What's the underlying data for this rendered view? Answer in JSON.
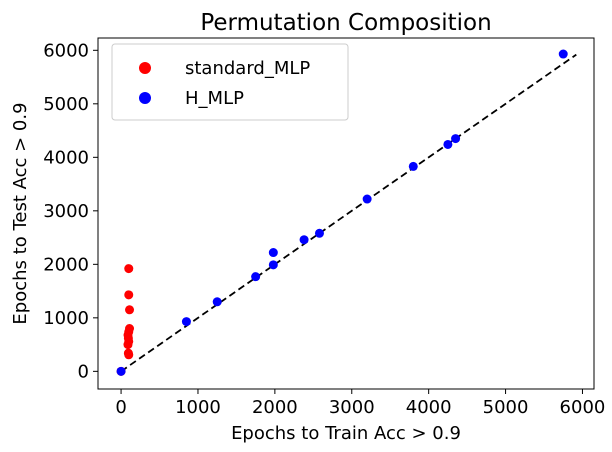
{
  "chart_data": {
    "type": "scatter",
    "title": "Permutation Composition",
    "xlabel": "Epochs to Train Acc > 0.9",
    "ylabel": "Epochs to Test Acc > 0.9",
    "xlim": [
      -300,
      6150
    ],
    "ylim": [
      -330,
      6230
    ],
    "xticks": [
      0,
      1000,
      2000,
      3000,
      4000,
      5000,
      6000
    ],
    "yticks": [
      0,
      1000,
      2000,
      3000,
      4000,
      5000,
      6000
    ],
    "grid": false,
    "legend_position": "top-left",
    "reference_line": {
      "style": "dashed",
      "color": "#000000",
      "from": [
        0,
        0
      ],
      "to": [
        5920,
        5920
      ]
    },
    "series": [
      {
        "name": "standard_MLP",
        "color": "#ff0000",
        "points": [
          {
            "x": 0,
            "y": 0
          },
          {
            "x": 100,
            "y": 1920
          },
          {
            "x": 100,
            "y": 1430
          },
          {
            "x": 110,
            "y": 1150
          },
          {
            "x": 110,
            "y": 800
          },
          {
            "x": 100,
            "y": 740
          },
          {
            "x": 90,
            "y": 680
          },
          {
            "x": 95,
            "y": 620
          },
          {
            "x": 100,
            "y": 560
          },
          {
            "x": 90,
            "y": 500
          },
          {
            "x": 95,
            "y": 340
          },
          {
            "x": 100,
            "y": 310
          }
        ]
      },
      {
        "name": "H_MLP",
        "color": "#0000ff",
        "points": [
          {
            "x": 0,
            "y": 0
          },
          {
            "x": 850,
            "y": 930
          },
          {
            "x": 1250,
            "y": 1300
          },
          {
            "x": 1750,
            "y": 1770
          },
          {
            "x": 1980,
            "y": 1990
          },
          {
            "x": 1980,
            "y": 2220
          },
          {
            "x": 2380,
            "y": 2460
          },
          {
            "x": 2580,
            "y": 2580
          },
          {
            "x": 3200,
            "y": 3220
          },
          {
            "x": 3800,
            "y": 3830
          },
          {
            "x": 4250,
            "y": 4240
          },
          {
            "x": 4350,
            "y": 4350
          },
          {
            "x": 5750,
            "y": 5930
          }
        ]
      }
    ]
  }
}
